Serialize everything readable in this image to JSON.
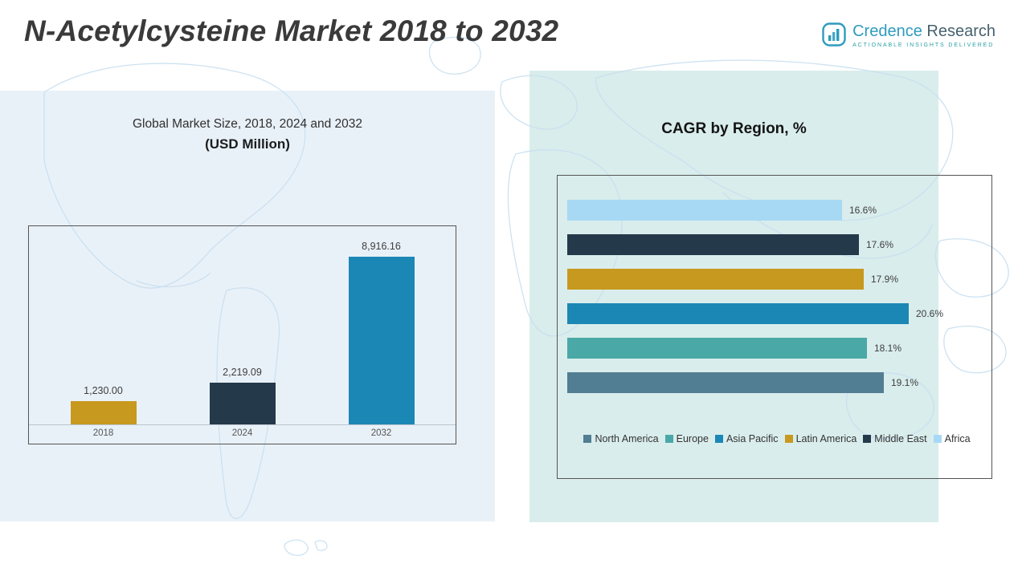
{
  "header": {
    "title": "N-Acetylcysteine Market 2018 to 2032",
    "logo": {
      "brand_primary": "Credence",
      "brand_secondary": "Research",
      "tagline": "ACTIONABLE INSIGHTS DELIVERED",
      "accent_color": "#2e9bbd"
    }
  },
  "left_panel": {
    "title_line1": "Global Market Size, 2018, 2024 and 2032",
    "title_line2": "(USD Million)"
  },
  "right_panel": {
    "title": "CAGR by Region, %"
  },
  "chart_data": [
    {
      "type": "bar",
      "title": "Global Market Size, 2018, 2024 and 2032 (USD Million)",
      "categories": [
        "2018",
        "2024",
        "2032"
      ],
      "values": [
        1230.0,
        2219.09,
        8916.16
      ],
      "value_labels": [
        "1,230.00",
        "2,219.09",
        "8,916.16"
      ],
      "bar_colors": [
        "#c8991f",
        "#24394a",
        "#1b87b5"
      ],
      "ylabel": "USD Million",
      "ylim": [
        0,
        9500
      ],
      "grid": false,
      "legend_position": "none"
    },
    {
      "type": "bar",
      "orientation": "horizontal",
      "title": "CAGR by Region, %",
      "rows_top_to_bottom": [
        {
          "region": "Africa",
          "value": 16.6,
          "label": "16.6%",
          "color": "#a8d9f4"
        },
        {
          "region": "Middle East",
          "value": 17.6,
          "label": "17.6%",
          "color": "#24394a"
        },
        {
          "region": "Latin America",
          "value": 17.9,
          "label": "17.9%",
          "color": "#c8991f"
        },
        {
          "region": "Asia Pacific",
          "value": 20.6,
          "label": "20.6%",
          "color": "#1b87b5"
        },
        {
          "region": "Europe",
          "value": 18.1,
          "label": "18.1%",
          "color": "#4aa8a6"
        },
        {
          "region": "North America",
          "value": 19.1,
          "label": "19.1%",
          "color": "#527e93"
        }
      ],
      "legend": [
        {
          "label": "North America",
          "color": "#527e93"
        },
        {
          "label": "Europe",
          "color": "#4aa8a6"
        },
        {
          "label": "Asia Pacific",
          "color": "#1b87b5"
        },
        {
          "label": "Latin America",
          "color": "#c8991f"
        },
        {
          "label": "Middle East",
          "color": "#24394a"
        },
        {
          "label": "Africa",
          "color": "#a8d9f4"
        }
      ],
      "xlim": [
        0,
        22
      ],
      "grid": false,
      "legend_position": "bottom"
    }
  ]
}
